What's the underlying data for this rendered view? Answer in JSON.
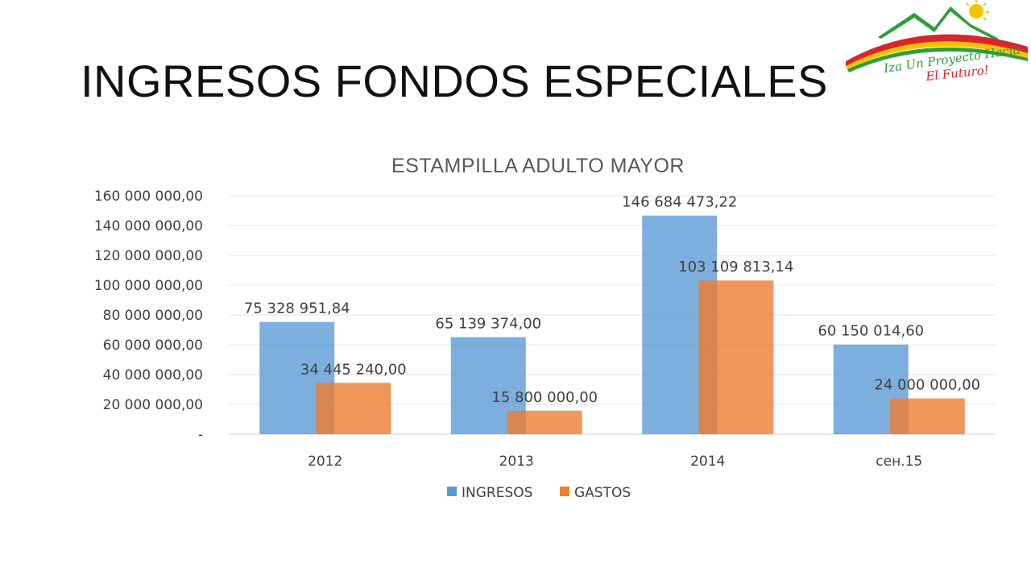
{
  "slide": {
    "title": "INGRESOS FONDOS ESPECIALES"
  },
  "logo": {
    "text_line1": "Iza Un Proyecto Hacia",
    "text_line2": "El Futuro!",
    "colors": {
      "green": "#2e9e3a",
      "red": "#d8262b",
      "yellow": "#f5c400"
    }
  },
  "chart_data": {
    "type": "bar",
    "title": "ESTAMPILLA ADULTO MAYOR",
    "categories": [
      "2012",
      "2013",
      "2014",
      "сен.15"
    ],
    "series": [
      {
        "name": "INGRESOS",
        "color": "#5b9bd5",
        "values": [
          75328951.84,
          65139374.0,
          146684473.22,
          60150014.6
        ],
        "labels": [
          "75 328 951,84",
          "65 139 374,00",
          "146 684 473,22",
          "60 150 014,60"
        ]
      },
      {
        "name": "GASTOS",
        "color": "#ed7d31",
        "values": [
          34445240.0,
          15800000.0,
          103109813.14,
          24000000.0
        ],
        "labels": [
          "34 445 240,00",
          "15 800 000,00",
          "103 109 813,14",
          "24 000 000,00"
        ]
      }
    ],
    "ylim": [
      0,
      160000000
    ],
    "yticks": [
      0,
      20000000,
      40000000,
      60000000,
      80000000,
      100000000,
      120000000,
      140000000,
      160000000
    ],
    "ytick_labels": [
      "-",
      "20 000 000,00",
      "40 000 000,00",
      "60 000 000,00",
      "80 000 000,00",
      "100 000 000,00",
      "120 000 000,00",
      "140 000 000,00",
      "160 000 000,00"
    ],
    "xlabel": "",
    "ylabel": "",
    "grid": true,
    "legend_position": "bottom"
  }
}
